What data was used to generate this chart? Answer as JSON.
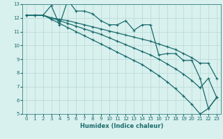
{
  "xlabel": "Humidex (Indice chaleur)",
  "ylabel": "",
  "xlim": [
    -0.5,
    23.5
  ],
  "ylim": [
    5,
    13
  ],
  "xticks": [
    0,
    1,
    2,
    3,
    4,
    5,
    6,
    7,
    8,
    9,
    10,
    11,
    12,
    13,
    14,
    15,
    16,
    17,
    18,
    19,
    20,
    21,
    22,
    23
  ],
  "yticks": [
    5,
    6,
    7,
    8,
    9,
    10,
    11,
    12,
    13
  ],
  "background_color": "#d8f0ee",
  "grid_color": "#b8d8d4",
  "line_color": "#1a6b6b",
  "line_width": 0.9,
  "marker": "+",
  "markersize": 3,
  "markeredgewidth": 0.8,
  "lines": [
    {
      "x": [
        0,
        1,
        2,
        3,
        4,
        5,
        6,
        7,
        8,
        9,
        10,
        11,
        12,
        13,
        14,
        15,
        16,
        17,
        18,
        19,
        20,
        21,
        22,
        23
      ],
      "y": [
        12.2,
        12.2,
        12.2,
        12.9,
        11.5,
        13.3,
        12.5,
        12.5,
        12.3,
        11.8,
        11.5,
        11.5,
        11.8,
        11.1,
        11.5,
        11.5,
        9.3,
        9.4,
        9.4,
        8.9,
        8.9,
        7.6,
        5.4,
        6.2
      ]
    },
    {
      "x": [
        0,
        1,
        2,
        3,
        4,
        5,
        6,
        7,
        8,
        9,
        10,
        11,
        12,
        13,
        14,
        15,
        16,
        17,
        18,
        19,
        20,
        21,
        22,
        23
      ],
      "y": [
        12.2,
        12.2,
        12.2,
        12.0,
        11.9,
        11.8,
        11.65,
        11.5,
        11.35,
        11.2,
        11.05,
        10.9,
        10.75,
        10.6,
        10.45,
        10.3,
        10.1,
        9.9,
        9.7,
        9.4,
        9.1,
        8.7,
        8.7,
        7.6
      ]
    },
    {
      "x": [
        0,
        1,
        2,
        3,
        4,
        5,
        6,
        7,
        8,
        9,
        10,
        11,
        12,
        13,
        14,
        15,
        16,
        17,
        18,
        19,
        20,
        21,
        22,
        23
      ],
      "y": [
        12.2,
        12.2,
        12.2,
        12.0,
        11.8,
        11.6,
        11.4,
        11.2,
        11.0,
        10.8,
        10.55,
        10.3,
        10.05,
        9.8,
        9.55,
        9.3,
        9.0,
        8.65,
        8.3,
        7.9,
        7.45,
        6.9,
        7.6,
        6.2
      ]
    },
    {
      "x": [
        0,
        1,
        2,
        3,
        4,
        5,
        6,
        7,
        8,
        9,
        10,
        11,
        12,
        13,
        14,
        15,
        16,
        17,
        18,
        19,
        20,
        21,
        22,
        23
      ],
      "y": [
        12.2,
        12.2,
        12.2,
        11.9,
        11.6,
        11.3,
        11.0,
        10.7,
        10.4,
        10.1,
        9.8,
        9.5,
        9.2,
        8.9,
        8.6,
        8.2,
        7.8,
        7.35,
        6.85,
        6.3,
        5.7,
        5.0,
        5.4,
        6.2
      ]
    }
  ]
}
